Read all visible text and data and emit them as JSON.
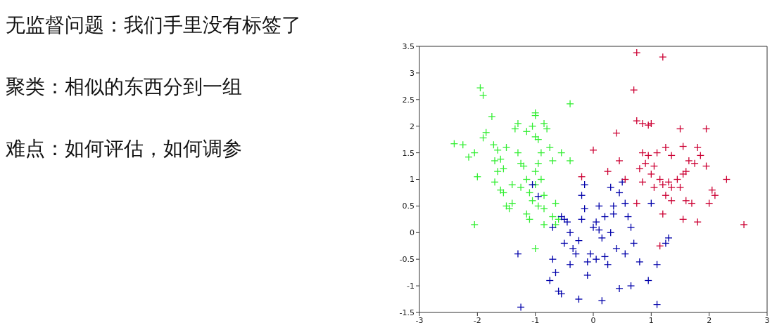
{
  "chart_data": {
    "type": "scatter",
    "annotations": [
      "无监督问题：我们手里没有标签了",
      "聚类：相似的东西分到一组",
      "难点：如何评估，如何调参"
    ],
    "xlim": [
      -3,
      3
    ],
    "xticks": [
      -3,
      -2,
      -1,
      0,
      1,
      2,
      3
    ],
    "ylim": [
      -1.5,
      3.5
    ],
    "yticks": [
      -1.5,
      -1,
      -0.5,
      0,
      0.5,
      1,
      1.5,
      2,
      2.5,
      3,
      3.5
    ],
    "grid": false,
    "legend": false,
    "marker": "cross",
    "series": [
      {
        "color": "#33ee33",
        "x": [
          -2.25,
          -2.05,
          -2.15,
          -2.0,
          -2.05,
          -1.95,
          -1.9,
          -1.75,
          -1.85,
          -1.9,
          -1.72,
          -1.65,
          -1.6,
          -1.7,
          -1.55,
          -1.65,
          -1.7,
          -1.55,
          -1.6,
          -1.5,
          -1.45,
          -1.4,
          -1.3,
          -1.25,
          -1.35,
          -1.3,
          -1.2,
          -1.15,
          -1.15,
          -1.1,
          -1.0,
          -1.0,
          -1.05,
          -1.0,
          -0.95,
          -0.9,
          -0.95,
          -1.0,
          -0.9,
          -0.85,
          -1.05,
          -0.95,
          -0.85,
          -1.0,
          -0.85,
          -0.8,
          -0.75,
          -0.7,
          -0.55,
          -0.65,
          -0.7,
          -0.6,
          -1.25,
          -1.1,
          -0.4,
          -0.65,
          -0.85,
          -1.0,
          -1.4,
          -1.5,
          -2.4,
          -1.15,
          -0.4
        ],
        "values": [
          1.65,
          1.5,
          1.42,
          1.05,
          0.15,
          2.72,
          2.58,
          2.18,
          1.88,
          1.78,
          1.65,
          1.55,
          1.38,
          1.35,
          1.2,
          1.15,
          0.95,
          0.75,
          0.8,
          0.5,
          0.45,
          0.55,
          1.5,
          1.3,
          1.95,
          2.05,
          1.25,
          1.0,
          0.35,
          0.25,
          2.25,
          2.2,
          2.0,
          1.8,
          1.75,
          1.5,
          1.3,
          1.15,
          1.0,
          0.7,
          0.6,
          0.5,
          0.45,
          0.9,
          2.05,
          1.95,
          1.6,
          1.35,
          1.5,
          0.55,
          0.3,
          0.25,
          0.85,
          0.75,
          2.42,
          0.15,
          0.15,
          -0.3,
          0.9,
          1.6,
          1.67,
          1.9,
          1.35
        ]
      },
      {
        "color": "#0000aa",
        "x": [
          -1.25,
          -1.3,
          -1.05,
          -0.95,
          -0.75,
          -0.65,
          -0.6,
          -0.55,
          -0.7,
          -0.7,
          -0.55,
          -0.5,
          -0.45,
          -0.4,
          -0.5,
          -0.35,
          -0.25,
          -0.2,
          -0.2,
          -0.15,
          -0.3,
          -0.25,
          -0.1,
          -0.05,
          0.0,
          0.05,
          0.1,
          0.15,
          0.2,
          0.2,
          0.25,
          0.3,
          0.35,
          0.4,
          0.45,
          0.5,
          0.55,
          0.6,
          0.65,
          0.7,
          0.55,
          0.65,
          0.8,
          1.0,
          1.25,
          1.3,
          1.1,
          0.3,
          0.15,
          -0.1,
          0.45,
          -0.4,
          0.05,
          0.95,
          1.1,
          -0.15,
          0.35,
          0.1
        ],
        "values": [
          -1.4,
          -0.4,
          0.9,
          0.68,
          -0.9,
          -0.75,
          -1.1,
          -1.15,
          -0.5,
          0.1,
          0.3,
          0.25,
          0.2,
          0.0,
          -0.2,
          -0.3,
          -0.15,
          0.25,
          0.7,
          0.9,
          -0.4,
          -1.25,
          -0.55,
          -0.4,
          0.1,
          0.2,
          0.5,
          -0.1,
          0.3,
          -0.45,
          -0.6,
          0.0,
          0.5,
          -0.3,
          0.75,
          0.95,
          0.55,
          0.3,
          0.1,
          -0.2,
          -0.4,
          -1.0,
          -0.55,
          0.55,
          -0.2,
          -0.1,
          -0.6,
          0.85,
          -1.28,
          -0.8,
          -1.05,
          -0.6,
          -0.5,
          -0.9,
          -1.35,
          0.45,
          0.35,
          0.05
        ]
      },
      {
        "color": "#cc0033",
        "x": [
          0.75,
          1.2,
          0.7,
          0.75,
          0.85,
          0.95,
          1.0,
          0.4,
          1.5,
          1.95,
          0.85,
          0.95,
          1.1,
          1.25,
          1.35,
          1.55,
          1.75,
          1.8,
          1.85,
          0.0,
          0.25,
          0.45,
          0.8,
          0.9,
          1.0,
          1.05,
          1.15,
          1.2,
          1.3,
          1.35,
          1.45,
          1.5,
          1.6,
          1.25,
          1.35,
          1.6,
          1.7,
          2.05,
          2.1,
          2.0,
          1.2,
          1.55,
          1.8,
          2.3,
          2.6,
          1.15,
          0.55,
          0.75,
          0.85,
          1.65,
          1.95,
          -0.2,
          1.05,
          1.55
        ],
        "values": [
          3.38,
          3.3,
          2.68,
          2.1,
          2.05,
          2.02,
          2.05,
          1.87,
          1.95,
          1.95,
          1.5,
          1.45,
          1.5,
          1.6,
          1.45,
          1.62,
          1.3,
          1.6,
          1.45,
          1.55,
          1.15,
          1.35,
          1.2,
          1.3,
          1.1,
          1.25,
          1.0,
          0.9,
          0.95,
          0.85,
          1.0,
          0.85,
          1.15,
          0.7,
          0.6,
          0.6,
          0.55,
          0.8,
          0.7,
          0.55,
          0.35,
          0.25,
          0.2,
          1.0,
          0.15,
          -0.25,
          1.0,
          0.55,
          0.95,
          1.35,
          1.25,
          1.05,
          0.85,
          1.1
        ]
      }
    ]
  }
}
